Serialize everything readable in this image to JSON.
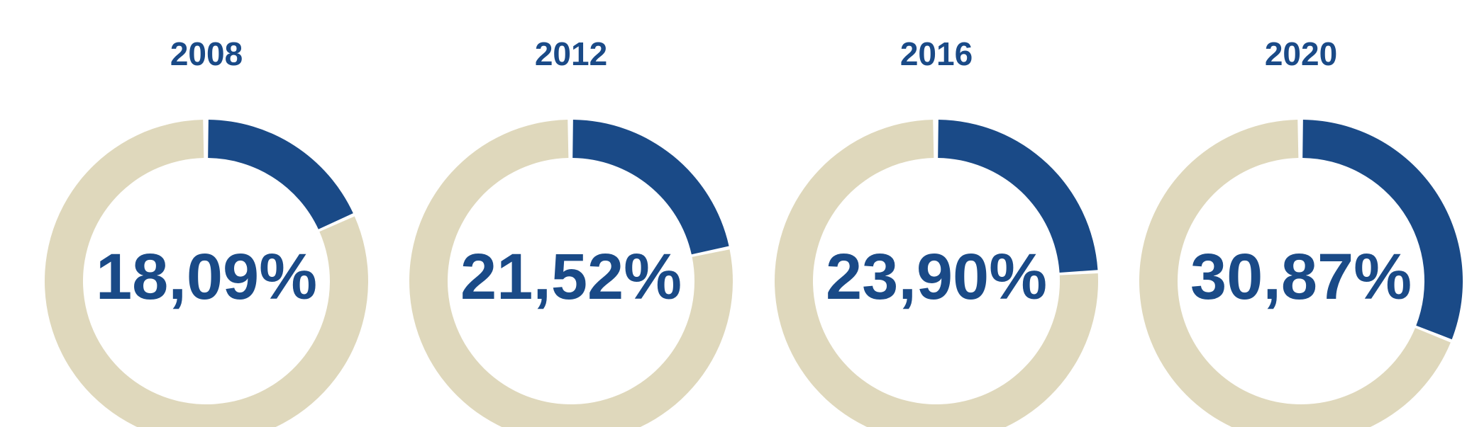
{
  "chart_data": {
    "type": "pie",
    "subtype": "donut",
    "colors": {
      "value": "#1a4a87",
      "remainder": "#dfd8bc",
      "text": "#1a4a87"
    },
    "charts": [
      {
        "year": "2008",
        "value": 18.09,
        "label": "18,09%"
      },
      {
        "year": "2012",
        "value": 21.52,
        "label": "21,52%"
      },
      {
        "year": "2016",
        "value": 23.9,
        "label": "23,90%"
      },
      {
        "year": "2020",
        "value": 30.87,
        "label": "30,87%"
      }
    ]
  }
}
